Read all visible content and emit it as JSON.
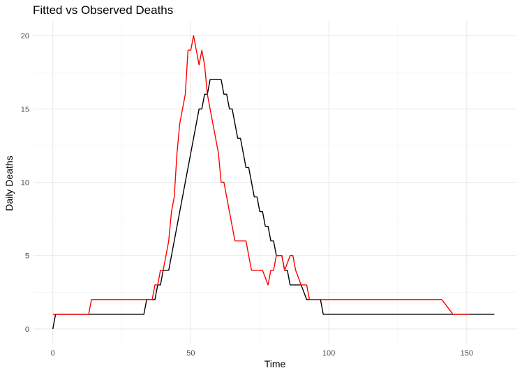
{
  "chart_data": {
    "type": "line",
    "title": "Fitted vs Observed Deaths",
    "xlabel": "Time",
    "ylabel": "Daily Deaths",
    "xlim": [
      -7,
      168
    ],
    "ylim": [
      -1,
      21
    ],
    "x_ticks": [
      0,
      50,
      100,
      150
    ],
    "y_ticks": [
      0,
      5,
      10,
      15,
      20
    ],
    "x_minor_ticks": [
      25,
      75,
      125
    ],
    "y_minor_ticks": [
      2.5,
      7.5,
      12.5,
      17.5
    ],
    "grid": true,
    "legend": "none",
    "colors": {
      "black_series": "#000000",
      "red_series": "#ff0000"
    },
    "series": [
      {
        "color": "#000000",
        "x": [
          0,
          1,
          33,
          34,
          37,
          38,
          39,
          40,
          42,
          53,
          54,
          55,
          56,
          57,
          61,
          62,
          63,
          64,
          65,
          66,
          67,
          68,
          69,
          70,
          71,
          72,
          73,
          74,
          75,
          76,
          77,
          78,
          79,
          80,
          81,
          82,
          83,
          84,
          85,
          86,
          88,
          90,
          92,
          93,
          96,
          97,
          98,
          160
        ],
        "y": [
          0,
          1,
          1,
          2,
          2,
          3,
          3,
          4,
          4,
          15,
          15,
          16,
          16,
          17,
          17,
          16,
          16,
          15,
          15,
          14,
          13,
          13,
          12,
          11,
          11,
          10,
          9,
          9,
          8,
          8,
          7,
          7,
          6,
          6,
          5,
          5,
          5,
          4,
          4,
          3,
          3,
          3,
          2,
          2,
          2,
          2,
          1,
          1
        ]
      },
      {
        "color": "#ff0000",
        "x": [
          0,
          13,
          14,
          36,
          37,
          38,
          39,
          40,
          41,
          42,
          43,
          44,
          45,
          46,
          48,
          49,
          50,
          51,
          52,
          53,
          54,
          55,
          56,
          57,
          58,
          59,
          60,
          61,
          62,
          63,
          64,
          65,
          66,
          67,
          68,
          70,
          71,
          72,
          73,
          75,
          76,
          77,
          78,
          79,
          80,
          81,
          82,
          83,
          84,
          85,
          86,
          87,
          88,
          90,
          92,
          93,
          94,
          141,
          145,
          151
        ],
        "y": [
          1,
          1,
          2,
          2,
          3,
          3,
          4,
          4,
          5,
          6,
          8,
          9,
          12,
          14,
          16,
          19,
          19,
          20,
          19,
          18,
          19,
          18,
          16,
          15,
          14,
          13,
          12,
          10,
          10,
          9,
          8,
          7,
          6,
          6,
          6,
          6,
          5,
          4,
          4,
          4,
          4,
          3.5,
          3,
          4,
          4,
          5,
          5,
          5,
          4,
          4.5,
          5,
          5,
          4,
          3,
          3,
          2,
          2,
          2,
          1,
          1
        ]
      }
    ]
  }
}
